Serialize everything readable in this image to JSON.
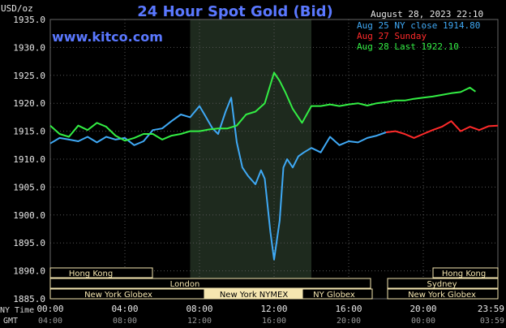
{
  "header": {
    "title": "24 Hour Spot Gold (Bid)",
    "unit_label": "USD/oz",
    "timestamp": "August 28, 2023 22:10",
    "website": "www.kitco.com"
  },
  "axes": {
    "row1_label": "NY Time",
    "row2_label": "GMT",
    "x_ticks_ny": [
      "00:00",
      "04:00",
      "08:00",
      "12:00",
      "16:00",
      "20:00",
      "23:59"
    ],
    "x_ticks_gmt": [
      "04:00",
      "08:00",
      "12:00",
      "16:00",
      "20:00",
      "00:00",
      "03:59"
    ]
  },
  "sessions": {
    "row1": [
      "Hong Kong",
      "Hong Kong"
    ],
    "row2": [
      "London",
      "Sydney"
    ],
    "row3": [
      "New York Globex",
      "New York NYMEX",
      "NY Globex",
      "New York Globex"
    ]
  },
  "colors": {
    "blue": "#3fa9f5",
    "red": "#ff2a2a",
    "green": "#33ee44",
    "highlight": "#1e2a1e",
    "title": "#5a78ff"
  },
  "chart_data": {
    "type": "line",
    "title": "24 Hour Spot Gold (Bid)",
    "ylabel": "USD/oz",
    "ylim": [
      1885,
      1935
    ],
    "xlim": [
      0,
      24
    ],
    "grid": true,
    "highlight_range_hours": [
      7.5,
      14.0
    ],
    "y_ticks": [
      "1935.0",
      "1930.0",
      "1925.0",
      "1920.0",
      "1915.0",
      "1910.0",
      "1905.0",
      "1900.0",
      "1895.0",
      "1890.0",
      "1885.0"
    ],
    "series": [
      {
        "name": "Aug 25 NY close 1914.80",
        "color": "#3fa9f5",
        "x": [
          0.0,
          0.5,
          1.0,
          1.5,
          2.0,
          2.5,
          3.0,
          3.5,
          4.0,
          4.5,
          5.0,
          5.5,
          6.0,
          6.5,
          7.0,
          7.5,
          8.0,
          8.3,
          8.7,
          9.0,
          9.4,
          9.7,
          10.0,
          10.3,
          10.6,
          11.0,
          11.3,
          11.5,
          11.8,
          12.0,
          12.3,
          12.5,
          12.7,
          13.0,
          13.3,
          13.6,
          14.0,
          14.5,
          15.0,
          15.5,
          16.0,
          16.5,
          17.0,
          17.5,
          18.0
        ],
        "y": [
          1912.8,
          1913.8,
          1913.5,
          1913.2,
          1914.0,
          1913.0,
          1914.0,
          1913.5,
          1913.8,
          1912.5,
          1913.2,
          1915.2,
          1915.5,
          1916.8,
          1918.0,
          1917.5,
          1919.5,
          1917.8,
          1915.5,
          1914.5,
          1918.5,
          1921.0,
          1913.0,
          1908.5,
          1907.0,
          1905.5,
          1908.0,
          1906.5,
          1897.0,
          1892.0,
          1899.0,
          1908.5,
          1910.0,
          1908.5,
          1910.5,
          1911.2,
          1912.0,
          1911.2,
          1914.0,
          1912.5,
          1913.2,
          1913.0,
          1913.8,
          1914.2,
          1914.8
        ]
      },
      {
        "name": "Aug 27 Sunday",
        "color": "#ff2a2a",
        "x": [
          18.0,
          18.5,
          19.0,
          19.5,
          20.0,
          20.5,
          21.0,
          21.5,
          22.0,
          22.5,
          23.0,
          23.5,
          24.0
        ],
        "y": [
          1914.8,
          1915.0,
          1914.5,
          1913.8,
          1914.5,
          1915.2,
          1915.8,
          1916.8,
          1915.0,
          1915.8,
          1915.2,
          1915.9,
          1916.0
        ]
      },
      {
        "name": "Aug 28 Last 1922.10",
        "color": "#33ee44",
        "x": [
          0.0,
          0.5,
          1.0,
          1.5,
          2.0,
          2.5,
          3.0,
          3.5,
          4.0,
          4.5,
          5.0,
          5.5,
          6.0,
          6.5,
          7.0,
          7.5,
          8.0,
          8.5,
          9.0,
          9.5,
          10.0,
          10.5,
          11.0,
          11.5,
          12.0,
          12.3,
          12.6,
          13.0,
          13.5,
          14.0,
          14.5,
          15.0,
          15.5,
          16.0,
          16.5,
          17.0,
          17.5,
          18.0,
          18.5,
          19.0,
          19.5,
          20.0,
          20.5,
          21.0,
          21.5,
          22.0,
          22.5,
          22.8
        ],
        "y": [
          1916.0,
          1914.5,
          1914.0,
          1916.0,
          1915.2,
          1916.5,
          1915.8,
          1914.2,
          1913.3,
          1913.8,
          1914.5,
          1914.5,
          1913.5,
          1914.2,
          1914.5,
          1915.0,
          1915.0,
          1915.3,
          1915.5,
          1915.5,
          1916.0,
          1918.0,
          1918.5,
          1920.0,
          1925.5,
          1924.0,
          1922.0,
          1919.0,
          1916.5,
          1919.5,
          1919.5,
          1919.8,
          1919.5,
          1919.8,
          1920.0,
          1919.6,
          1920.0,
          1920.2,
          1920.5,
          1920.5,
          1920.8,
          1921.0,
          1921.2,
          1921.5,
          1921.8,
          1922.0,
          1922.8,
          1922.1
        ]
      }
    ]
  }
}
